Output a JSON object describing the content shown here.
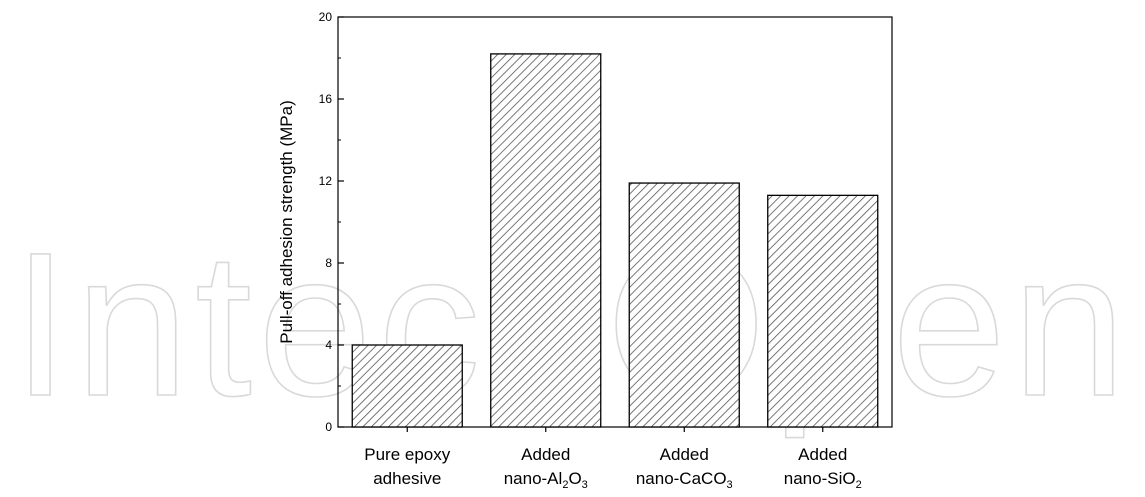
{
  "watermark": {
    "text": "IntechOpen"
  },
  "chart_data": {
    "type": "bar",
    "title": "",
    "xlabel": "",
    "ylabel": "Pull-off adhesion strength (MPa)",
    "ylim": [
      0,
      20
    ],
    "yticks": [
      "0",
      "4",
      "8",
      "12",
      "16",
      "20"
    ],
    "categories": [
      {
        "lines": [
          [
            {
              "t": "Pure epoxy",
              "sub": false
            }
          ],
          [
            {
              "t": "adhesive",
              "sub": false
            }
          ]
        ]
      },
      {
        "lines": [
          [
            {
              "t": "Added",
              "sub": false
            }
          ],
          [
            {
              "t": "nano-Al",
              "sub": false
            },
            {
              "t": "2",
              "sub": true
            },
            {
              "t": "O",
              "sub": false
            },
            {
              "t": "3",
              "sub": true
            }
          ]
        ]
      },
      {
        "lines": [
          [
            {
              "t": "Added",
              "sub": false
            }
          ],
          [
            {
              "t": "nano-CaCO",
              "sub": false
            },
            {
              "t": "3",
              "sub": true
            }
          ]
        ]
      },
      {
        "lines": [
          [
            {
              "t": "Added",
              "sub": false
            }
          ],
          [
            {
              "t": "nano-SiO",
              "sub": false
            },
            {
              "t": "2",
              "sub": true
            }
          ]
        ]
      }
    ],
    "values": [
      4.0,
      18.2,
      11.9,
      11.3
    ],
    "bar_fill": "hatched",
    "colors": {
      "axis": "#000000",
      "hatch": "#555555",
      "watermark": "#d9d9d9"
    }
  }
}
